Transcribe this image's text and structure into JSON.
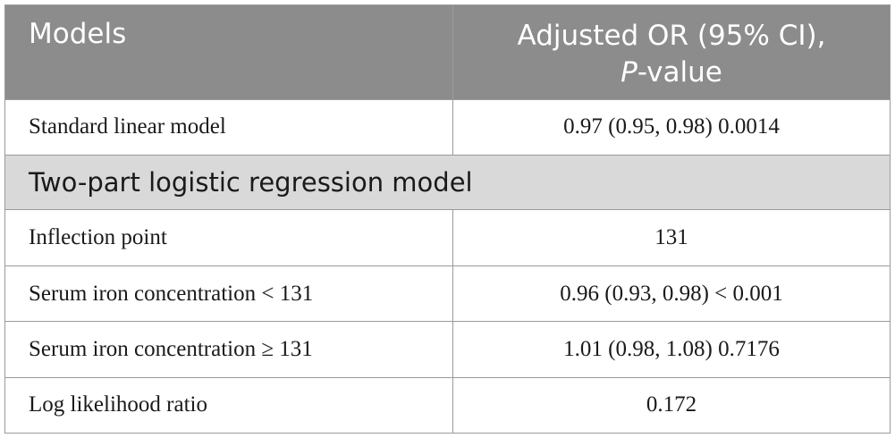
{
  "table": {
    "header": {
      "col1": "Models",
      "col2_line1": "Adjusted OR (95% CI),",
      "col2_italic": "P",
      "col2_rest": "-value"
    },
    "rows": [
      {
        "label": "Standard linear model",
        "value": "0.97 (0.95, 0.98) 0.0014"
      },
      {
        "label": "Two-part logistic regression model",
        "section": true
      },
      {
        "label": "Inflection point",
        "value": "131"
      },
      {
        "label": "Serum iron concentration < 131",
        "value": "0.96 (0.93, 0.98) < 0.001"
      },
      {
        "label": "Serum iron concentration ≥ 131",
        "value": "1.01 (0.98, 1.08) 0.7176"
      },
      {
        "label": "Log likelihood ratio",
        "value": "0.172"
      }
    ]
  },
  "colors": {
    "header_bg": "#8c8c8c",
    "section_bg": "#d9d9d9",
    "border": "#9a9a9a"
  }
}
